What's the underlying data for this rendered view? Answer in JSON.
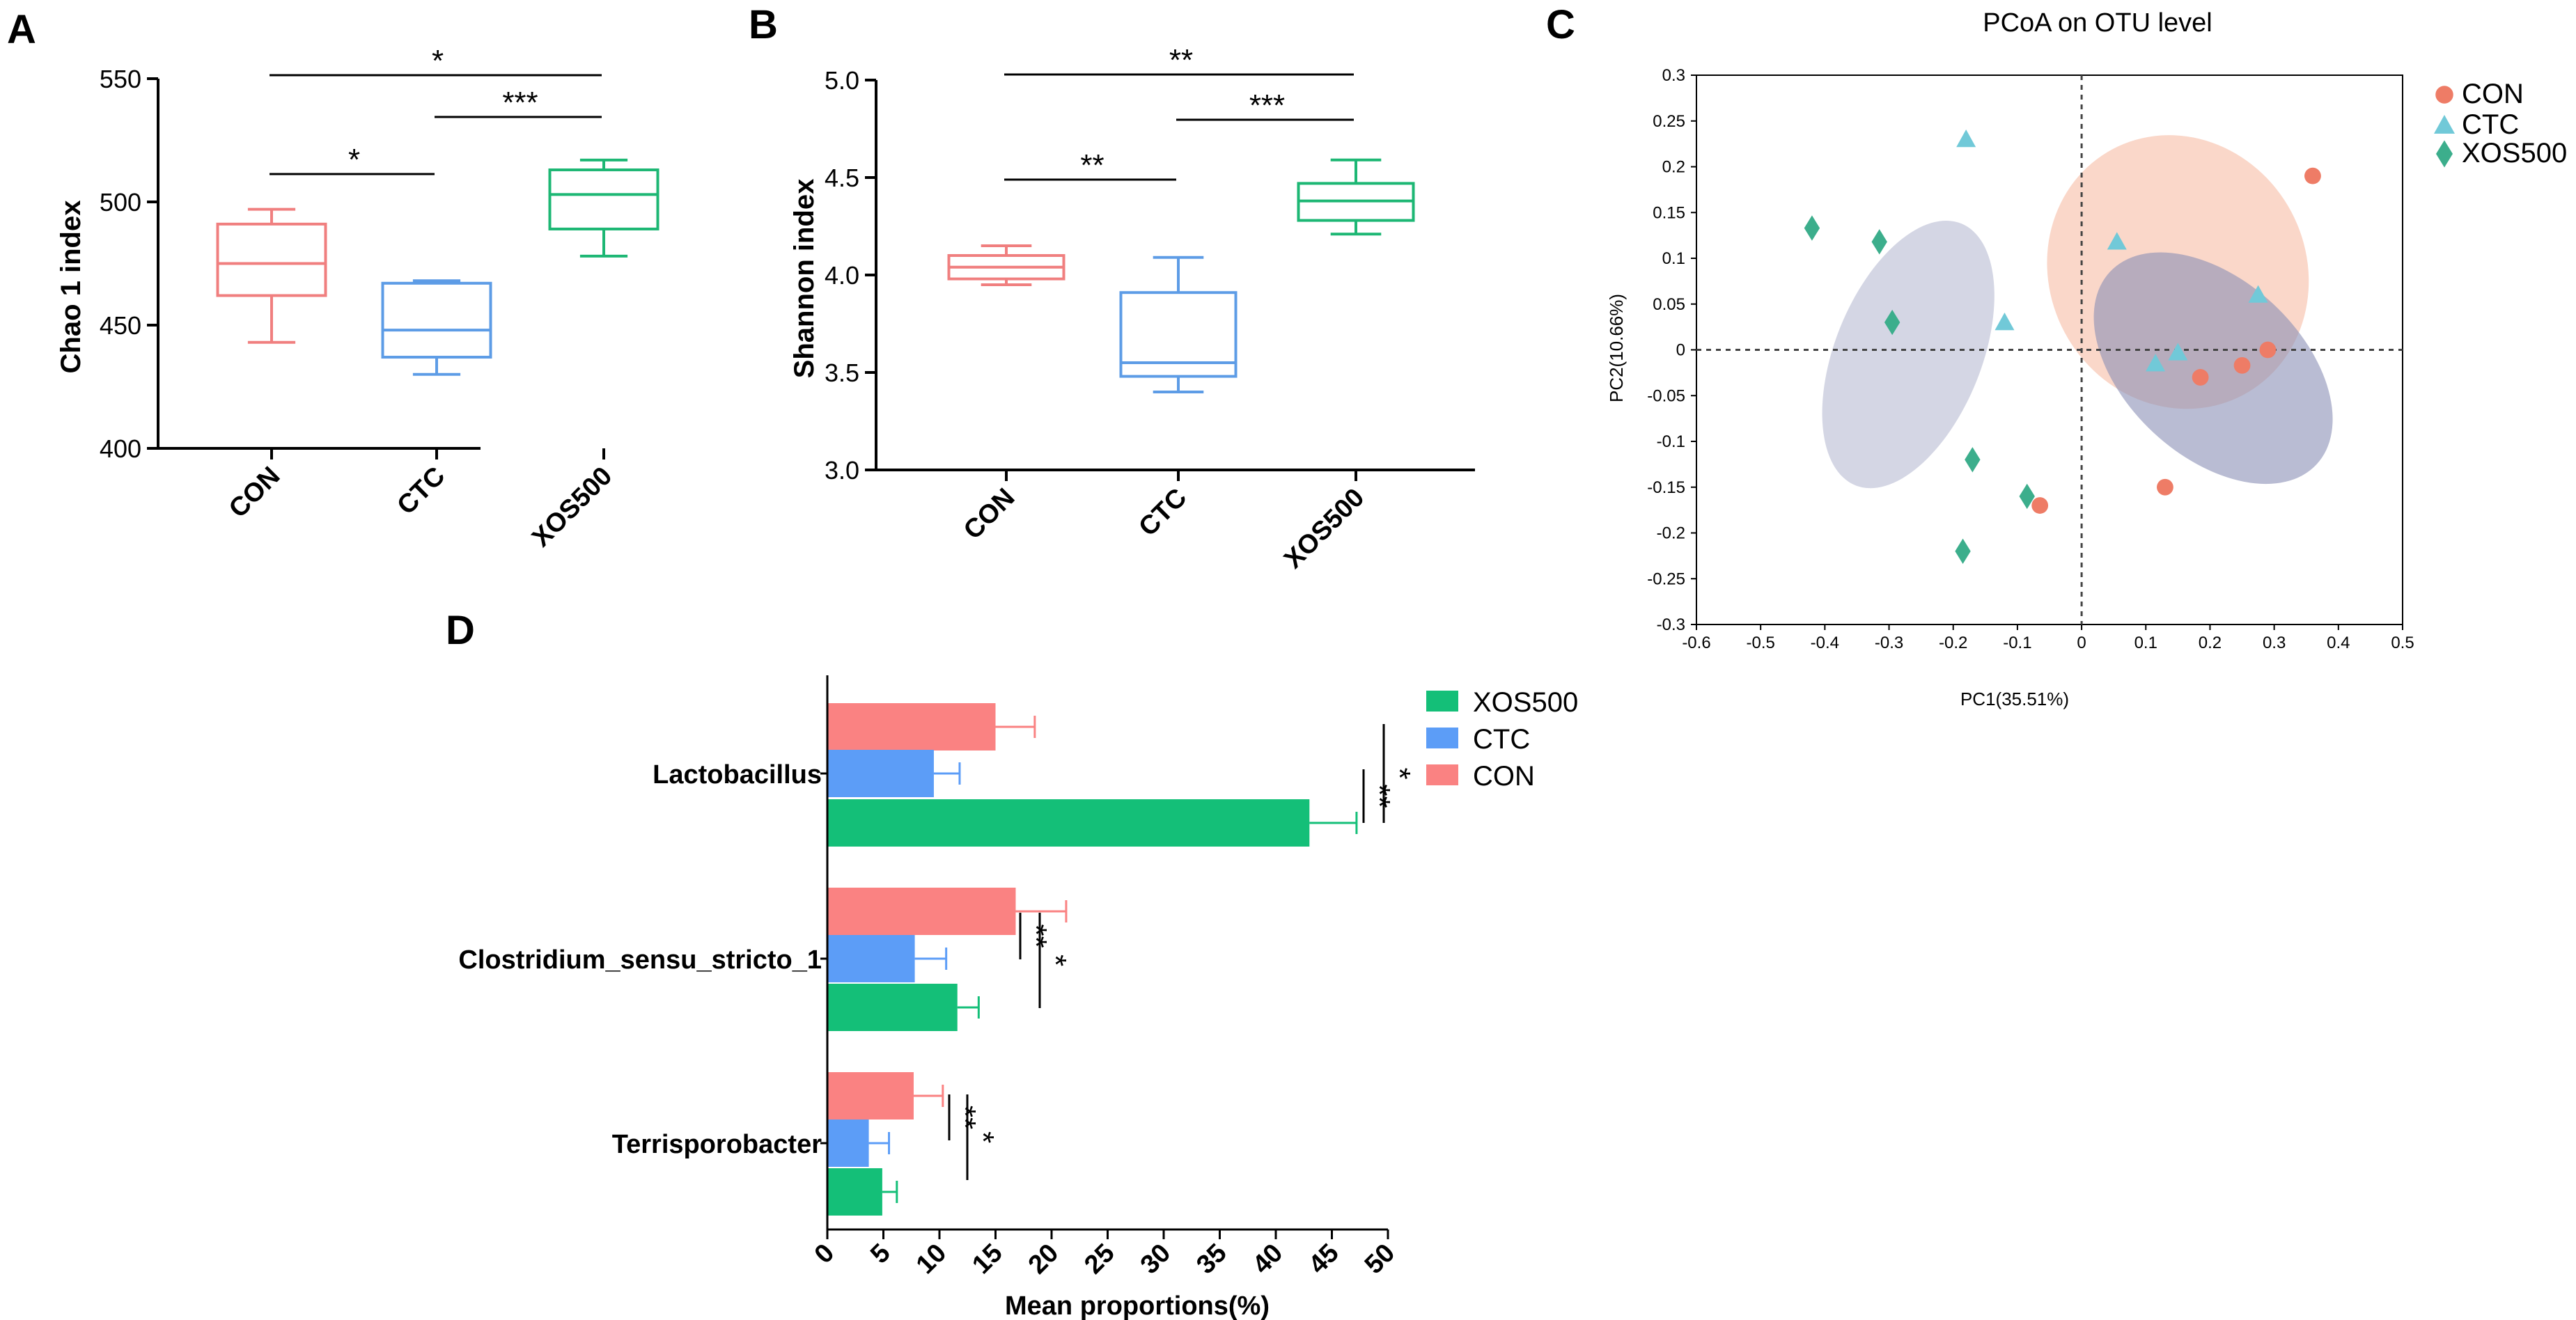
{
  "colors": {
    "CON": "#F07F7F",
    "CTC": "#5D9CE6",
    "XOS500": "#1DB774",
    "CON_bar": "#FA8282",
    "CTC_bar": "#5C9DF7",
    "XOS500_bar": "#14BF78",
    "pcoa_CON": "#EE7C66",
    "pcoa_CTC": "#71C9D8",
    "pcoa_XOS500": "#3CAE8C",
    "ell_CON": "#F8C9B7",
    "ell_CTC": "#8A90B6",
    "ell_XOS500": "#C5C8DB"
  },
  "chart_data": [
    {
      "panel": "A",
      "type": "box",
      "ylabel": "Chao 1  index",
      "categories": [
        "CON",
        "CTC",
        "XOS500"
      ],
      "ylim": [
        400,
        550
      ],
      "yticks": [
        "400",
        "450",
        "500",
        "550"
      ],
      "boxes": [
        {
          "name": "CON",
          "min": 443,
          "q1": 462,
          "median": 475,
          "q3": 491,
          "max": 497
        },
        {
          "name": "CTC",
          "min": 430,
          "q1": 437,
          "median": 448,
          "q3": 467,
          "max": 468
        },
        {
          "name": "XOS500",
          "min": 478,
          "q1": 489,
          "median": 503,
          "q3": 513,
          "max": 517
        }
      ],
      "significance": [
        {
          "from": "CON",
          "to": "XOS500",
          "label": "*",
          "level": 0
        },
        {
          "from": "CTC",
          "to": "XOS500",
          "label": "***",
          "level": 1
        },
        {
          "from": "CON",
          "to": "CTC",
          "label": "*",
          "level": 2
        }
      ]
    },
    {
      "panel": "B",
      "type": "box",
      "ylabel": "Shannon  index",
      "categories": [
        "CON",
        "CTC",
        "XOS500"
      ],
      "ylim": [
        3.0,
        5.0
      ],
      "yticks": [
        "3.0",
        "3.5",
        "4.0",
        "4.5",
        "5.0"
      ],
      "boxes": [
        {
          "name": "CON",
          "min": 3.95,
          "q1": 3.98,
          "median": 4.04,
          "q3": 4.1,
          "max": 4.15
        },
        {
          "name": "CTC",
          "min": 3.4,
          "q1": 3.48,
          "median": 3.55,
          "q3": 3.91,
          "max": 4.09
        },
        {
          "name": "XOS500",
          "min": 4.21,
          "q1": 4.28,
          "median": 4.38,
          "q3": 4.47,
          "max": 4.59
        }
      ],
      "significance": [
        {
          "from": "CON",
          "to": "XOS500",
          "label": "**",
          "level": 0
        },
        {
          "from": "CTC",
          "to": "XOS500",
          "label": "***",
          "level": 1
        },
        {
          "from": "CON",
          "to": "CTC",
          "label": "**",
          "level": 2
        }
      ]
    },
    {
      "panel": "C",
      "type": "scatter",
      "title": "PCoA on OTU level",
      "xlabel": "PC1(35.51%)",
      "ylabel": "PC2(10.66%)",
      "xlim": [
        -0.6,
        0.5
      ],
      "ylim": [
        -0.3,
        0.3
      ],
      "xticks": [
        "-0.6",
        "-0.5",
        "-0.4",
        "-0.3",
        "-0.2",
        "-0.1",
        "0",
        "0.1",
        "0.2",
        "0.3",
        "0.4",
        "0.5"
      ],
      "yticks": [
        "0.3",
        "0.25",
        "0.2",
        "0.15",
        "0.1",
        "0.05",
        "0",
        "-0.05",
        "-0.1",
        "-0.15",
        "-0.2",
        "-0.25",
        "-0.3"
      ],
      "legend": [
        "CON",
        "CTC",
        "XOS500"
      ],
      "series": [
        {
          "name": "CON",
          "marker": "circle",
          "points": [
            [
              0.36,
              0.19
            ],
            [
              0.29,
              0.0
            ],
            [
              0.25,
              -0.017
            ],
            [
              0.185,
              -0.03
            ],
            [
              0.13,
              -0.15
            ],
            [
              -0.065,
              -0.17
            ]
          ]
        },
        {
          "name": "CTC",
          "marker": "triangle",
          "points": [
            [
              -0.18,
              0.23
            ],
            [
              0.055,
              0.118
            ],
            [
              0.275,
              0.06
            ],
            [
              -0.12,
              0.03
            ],
            [
              0.15,
              -0.003
            ],
            [
              0.115,
              -0.015
            ]
          ]
        },
        {
          "name": "XOS500",
          "marker": "diamond",
          "points": [
            [
              -0.42,
              0.133
            ],
            [
              -0.315,
              0.118
            ],
            [
              -0.295,
              0.03
            ],
            [
              -0.17,
              -0.12
            ],
            [
              -0.085,
              -0.16
            ],
            [
              -0.185,
              -0.22
            ]
          ]
        }
      ],
      "ellipses": [
        {
          "name": "CON",
          "cx": 0.15,
          "cy": 0.085,
          "rx": 0.2,
          "ry": 0.095,
          "angle": -28
        },
        {
          "name": "CTC",
          "cx": 0.205,
          "cy": -0.02,
          "rx": 0.22,
          "ry": 0.06,
          "angle": 43
        },
        {
          "name": "XOS500",
          "cx": -0.27,
          "cy": -0.005,
          "rx": 0.22,
          "ry": 0.05,
          "angle": -68
        }
      ]
    },
    {
      "panel": "D",
      "type": "bar",
      "orientation": "horizontal",
      "xlabel": "Mean proportions(%)",
      "xlim": [
        0,
        50
      ],
      "xticks": [
        "0",
        "5",
        "10",
        "15",
        "20",
        "25",
        "30",
        "35",
        "40",
        "45",
        "50"
      ],
      "legend": [
        "XOS500",
        "CTC",
        "CON"
      ],
      "categories": [
        "Lactobacillus",
        "Clostridium_sensu_stricto_1",
        "Terrisporobacter"
      ],
      "series": [
        {
          "name": "CON",
          "values": [
            15.0,
            16.8,
            7.7
          ],
          "errors": [
            3.5,
            4.5,
            2.6
          ]
        },
        {
          "name": "CTC",
          "values": [
            9.5,
            7.8,
            3.7
          ],
          "errors": [
            2.3,
            2.8,
            1.8
          ]
        },
        {
          "name": "XOS500",
          "values": [
            43.0,
            11.6,
            4.9
          ],
          "errors": [
            4.2,
            1.9,
            1.3
          ]
        }
      ],
      "significance": [
        {
          "category": "Lactobacillus",
          "pair": "CTC-XOS500",
          "label": "**"
        },
        {
          "category": "Lactobacillus",
          "pair": "CON-XOS500",
          "label": "*"
        },
        {
          "category": "Clostridium_sensu_stricto_1",
          "pair": "CON-CTC",
          "label": "**"
        },
        {
          "category": "Clostridium_sensu_stricto_1",
          "pair": "CON-XOS500",
          "label": "*"
        },
        {
          "category": "Terrisporobacter",
          "pair": "CON-CTC",
          "label": "**"
        },
        {
          "category": "Terrisporobacter",
          "pair": "CON-XOS500",
          "label": "*"
        }
      ]
    }
  ]
}
